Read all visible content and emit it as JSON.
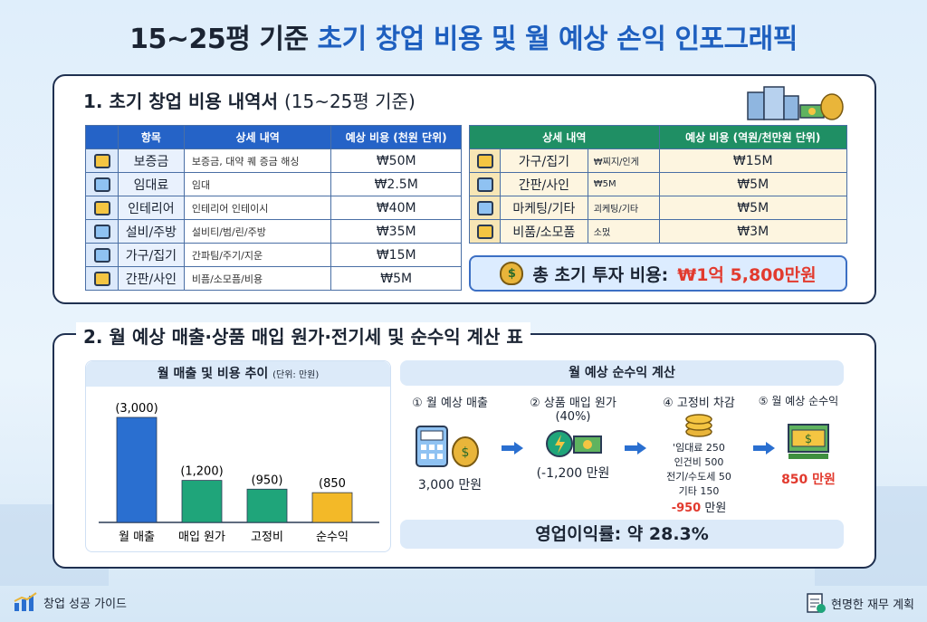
{
  "title": {
    "part1": "15~25평 기준",
    "part2": "초기 창업 비용 및 월 예상 손익 인포그래픽"
  },
  "section1": {
    "title": "1. 초기 창업 비용 내역서",
    "subtitle": "(15~25평 기준)",
    "left_table": {
      "headers": [
        "항목",
        "상세 내역",
        "예상 비용 (천원 단위)"
      ],
      "rows": [
        {
          "name": "보증금",
          "detail": "보증금, 대약 퀘 증금 해싱",
          "cost": "₩50M"
        },
        {
          "name": "임대료",
          "detail": "임대",
          "cost": "₩2.5M"
        },
        {
          "name": "인테리어",
          "detail": "인테리어 인테이시",
          "cost": "₩40M"
        },
        {
          "name": "설비/주방",
          "detail": "설비티/범/린/주방",
          "cost": "₩35M"
        },
        {
          "name": "가구/집기",
          "detail": "간파팀/주기/지운",
          "cost": "₩15M"
        },
        {
          "name": "간판/사인",
          "detail": "비픔/소모픔/비용",
          "cost": "₩5M"
        }
      ]
    },
    "right_table": {
      "headers": [
        "상세 내역",
        "예상 비용 (역원/천만원 단위)"
      ],
      "rows": [
        {
          "name": "가구/집기",
          "detail": "₩찌지/인게",
          "cost": "₩15M"
        },
        {
          "name": "간판/사인",
          "detail": "₩5M",
          "cost": "₩5M"
        },
        {
          "name": "마케팅/기타",
          "detail": "괴케팅/기타",
          "cost": "₩5M"
        },
        {
          "name": "비품/소모품",
          "detail": "소멌",
          "cost": "₩3M"
        }
      ]
    },
    "total_label": "총 초기 투자 비용:",
    "total_value": "₩1억 5,800만원"
  },
  "section2": {
    "title": "2. 월 예상 매출·상품 매입 원가·전기세 및 순수익 계산 표",
    "chart_title": "월 매출 및 비용 추이",
    "chart_unit": "(단위: 만원)",
    "calc_title": "월 예상 순수익 계산",
    "steps": [
      {
        "label": "① 월 예상 매출",
        "value": "3,000 만원"
      },
      {
        "label": "② 상품 매입 원가",
        "sub": "(40%)",
        "value": "(-1,200 만원"
      },
      {
        "label": "④ 고정비 차감",
        "lines": [
          "'임대료 250",
          "인건비 500",
          "전기/수도세 50",
          "기타 150"
        ],
        "value_red": "-950",
        "value_unit": " 만원"
      },
      {
        "label": "⑤ 월 예상 순수익",
        "value": "850 만원"
      }
    ],
    "margin": "영업이익률: 약 28.3%"
  },
  "chart_data": {
    "type": "bar",
    "title": "월 매출 및 비용 추이",
    "ylabel": "",
    "categories": [
      "월 매출",
      "매입 원가",
      "고정비",
      "순수익"
    ],
    "values": [
      3000,
      1200,
      950,
      850
    ],
    "value_labels": [
      "(3,000)",
      "(1,200)",
      "(950)",
      "(850"
    ],
    "colors": [
      "#2a6fd0",
      "#1fa57a",
      "#1fa57a",
      "#f3b928"
    ],
    "ylim": [
      0,
      3000
    ]
  },
  "footer": {
    "left": "창업 성공 가이드",
    "right": "현명한 재무 계획"
  }
}
